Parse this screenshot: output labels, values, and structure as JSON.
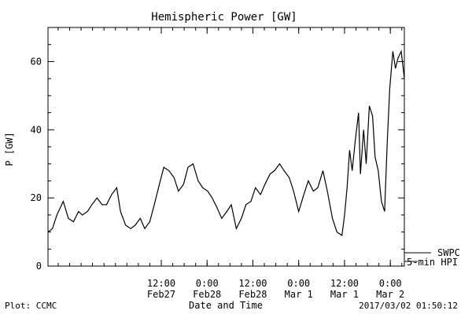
{
  "chart_data": {
    "type": "line",
    "title": "Hemispheric Power [GW]",
    "xlabel": "Date and Time",
    "ylabel": "P [GW]",
    "xlim": [
      "2017-02-26 06:20",
      "2017-03-02 03:40"
    ],
    "ylim": [
      0,
      70
    ],
    "grid": false,
    "y_ticks": [
      0,
      20,
      40,
      60
    ],
    "x_ticks": [
      {
        "t": "2017-02-27 12:00",
        "line1": "12:00",
        "line2": "Feb27"
      },
      {
        "t": "2017-02-28 00:00",
        "line1": "0:00",
        "line2": "Feb28"
      },
      {
        "t": "2017-02-28 12:00",
        "line1": "12:00",
        "line2": "Feb28"
      },
      {
        "t": "2017-03-01 00:00",
        "line1": "0:00",
        "line2": "Mar 1"
      },
      {
        "t": "2017-03-01 12:00",
        "line1": "12:00",
        "line2": "Mar 1"
      },
      {
        "t": "2017-03-02 00:00",
        "line1": "0:00",
        "line2": "Mar 2"
      }
    ],
    "legend": [
      {
        "label": "SWPC"
      },
      {
        "label": "5-min HPI"
      }
    ],
    "series": [
      {
        "name": "5-min HPI",
        "color": "#000000",
        "x": [
          "2017-02-26 06:20",
          "2017-02-26 07:30",
          "2017-02-26 08:40",
          "2017-02-26 10:20",
          "2017-02-26 11:40",
          "2017-02-26 13:00",
          "2017-02-26 14:20",
          "2017-02-26 15:20",
          "2017-02-26 16:40",
          "2017-02-26 17:50",
          "2017-02-26 19:10",
          "2017-02-26 20:30",
          "2017-02-26 21:40",
          "2017-02-26 23:00",
          "2017-02-27 00:20",
          "2017-02-27 01:20",
          "2017-02-27 02:40",
          "2017-02-27 04:00",
          "2017-02-27 05:10",
          "2017-02-27 06:30",
          "2017-02-27 07:40",
          "2017-02-27 09:00",
          "2017-02-27 10:10",
          "2017-02-27 11:30",
          "2017-02-27 12:40",
          "2017-02-27 14:00",
          "2017-02-27 15:20",
          "2017-02-27 16:30",
          "2017-02-27 17:50",
          "2017-02-27 19:00",
          "2017-02-27 20:20",
          "2017-02-27 21:40",
          "2017-02-27 22:50",
          "2017-02-28 00:10",
          "2017-02-28 01:20",
          "2017-02-28 02:40",
          "2017-02-28 03:50",
          "2017-02-28 05:10",
          "2017-02-28 06:20",
          "2017-02-28 07:40",
          "2017-02-28 09:00",
          "2017-02-28 10:10",
          "2017-02-28 11:30",
          "2017-02-28 12:40",
          "2017-02-28 14:00",
          "2017-02-28 15:10",
          "2017-02-28 16:30",
          "2017-02-28 17:40",
          "2017-02-28 19:00",
          "2017-02-28 20:10",
          "2017-02-28 21:30",
          "2017-02-28 22:40",
          "2017-03-01 00:00",
          "2017-03-01 01:20",
          "2017-03-01 02:30",
          "2017-03-01 03:50",
          "2017-03-01 05:00",
          "2017-03-01 06:20",
          "2017-03-01 07:30",
          "2017-03-01 08:50",
          "2017-03-01 10:00",
          "2017-03-01 11:20",
          "2017-03-01 12:00",
          "2017-03-01 12:40",
          "2017-03-01 13:20",
          "2017-03-01 14:00",
          "2017-03-01 14:50",
          "2017-03-01 15:40",
          "2017-03-01 16:10",
          "2017-03-01 17:00",
          "2017-03-01 17:40",
          "2017-03-01 18:30",
          "2017-03-01 19:20",
          "2017-03-01 20:00",
          "2017-03-01 20:50",
          "2017-03-01 21:40",
          "2017-03-01 22:30",
          "2017-03-01 23:10",
          "2017-03-01 23:50",
          "2017-03-02 00:40",
          "2017-03-02 01:20",
          "2017-03-02 02:00",
          "2017-03-02 02:50",
          "2017-03-02 03:40"
        ],
        "y": [
          10,
          11,
          15,
          19,
          14,
          13,
          16,
          15,
          16,
          18,
          20,
          18,
          18,
          21,
          23,
          16,
          12,
          11,
          12,
          14,
          11,
          13,
          18,
          24,
          29,
          28,
          26,
          22,
          24,
          29,
          30,
          25,
          23,
          22,
          20,
          17,
          14,
          16,
          18,
          11,
          14,
          18,
          19,
          23,
          21,
          24,
          27,
          28,
          30,
          28,
          26,
          22,
          16,
          21,
          25,
          22,
          23,
          28,
          22,
          14,
          10,
          9,
          15,
          23,
          34,
          28,
          37,
          45,
          27,
          40,
          30,
          47,
          44,
          32,
          28,
          19,
          16,
          36,
          52,
          63,
          58,
          61,
          63,
          55
        ]
      }
    ]
  },
  "footer": {
    "plot_credit": "Plot: CCMC",
    "timestamp": "2017/03/02 01:50:12"
  }
}
